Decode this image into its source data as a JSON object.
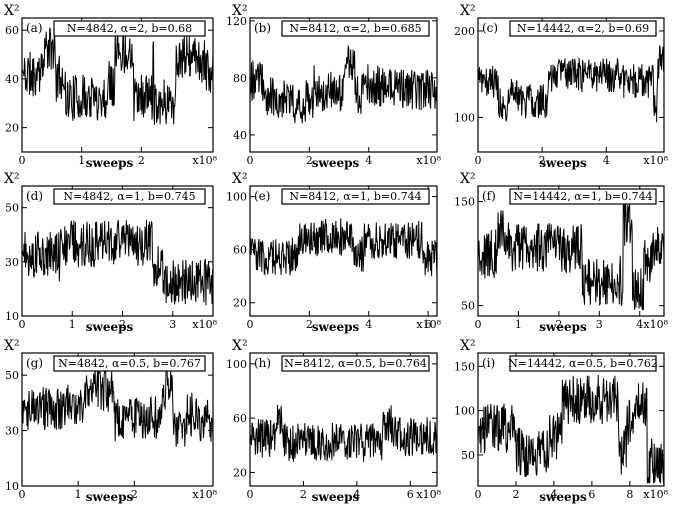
{
  "chart_data": [
    {
      "type": "line",
      "panel": "(a)",
      "annotation": "N=4842, α=2, b=0.68",
      "ylabel": "X²",
      "xlabel": "sweeps",
      "x_multiplier": "x10⁸",
      "xlim": [
        0,
        3.2
      ],
      "ylim": [
        10,
        65
      ],
      "xticks": [
        0,
        1,
        2
      ],
      "yticks": [
        20,
        40,
        60
      ],
      "y_mean": 42,
      "y_spread": 12,
      "seed": 11
    },
    {
      "type": "line",
      "panel": "(b)",
      "annotation": "N=8412, α=2, b=0.685",
      "ylabel": "X²",
      "xlabel": "sweeps",
      "x_multiplier": "x10⁸",
      "xlim": [
        0,
        6.3
      ],
      "ylim": [
        28,
        122
      ],
      "xticks": [
        0,
        2,
        4
      ],
      "yticks": [
        40,
        80,
        120
      ],
      "y_mean": 78,
      "y_spread": 18,
      "seed": 23
    },
    {
      "type": "line",
      "panel": "(c)",
      "annotation": "N=14442, α=2, b=0.69",
      "ylabel": "X²",
      "xlabel": "sweeps",
      "x_multiplier": "x10⁸",
      "xlim": [
        0,
        5.8
      ],
      "ylim": [
        60,
        215
      ],
      "xticks": [
        0,
        2,
        4
      ],
      "yticks": [
        100,
        200
      ],
      "y_mean": 140,
      "y_spread": 25,
      "seed": 37
    },
    {
      "type": "line",
      "panel": "(d)",
      "annotation": "N=4842, α=1, b=0.745",
      "ylabel": "X²",
      "xlabel": "sweeps",
      "x_multiplier": "x10⁸",
      "xlim": [
        0,
        3.8
      ],
      "ylim": [
        10,
        58
      ],
      "xticks": [
        0,
        1,
        2,
        3
      ],
      "yticks": [
        10,
        30,
        50
      ],
      "y_mean": 33,
      "y_spread": 11,
      "seed": 41
    },
    {
      "type": "line",
      "panel": "(e)",
      "annotation": "N=8412, α=1, b=0.744",
      "ylabel": "X²",
      "xlabel": "sweeps",
      "x_multiplier": "x10⁸",
      "xlim": [
        0,
        6.3
      ],
      "ylim": [
        10,
        108
      ],
      "xticks": [
        0,
        2,
        4,
        6
      ],
      "yticks": [
        20,
        60,
        100
      ],
      "y_mean": 55,
      "y_spread": 18,
      "seed": 53
    },
    {
      "type": "line",
      "panel": "(f)",
      "annotation": "N=14442, α=1, b=0.744",
      "ylabel": "X²",
      "xlabel": "sweeps",
      "x_multiplier": "x10⁸",
      "xlim": [
        0,
        4.6
      ],
      "ylim": [
        40,
        165
      ],
      "xticks": [
        0,
        1,
        2,
        3,
        4
      ],
      "yticks": [
        50,
        150
      ],
      "y_mean": 100,
      "y_spread": 30,
      "seed": 67
    },
    {
      "type": "line",
      "panel": "(g)",
      "annotation": "N=4842, α=0.5, b=0.767",
      "ylabel": "X²",
      "xlabel": "sweeps",
      "x_multiplier": "x10⁸",
      "xlim": [
        0,
        3.4
      ],
      "ylim": [
        10,
        58
      ],
      "xticks": [
        0,
        1,
        2
      ],
      "yticks": [
        10,
        30,
        50
      ],
      "y_mean": 38,
      "y_spread": 10,
      "seed": 71
    },
    {
      "type": "line",
      "panel": "(h)",
      "annotation": "N=8412, α=0.5, b=0.764",
      "ylabel": "X²",
      "xlabel": "sweeps",
      "x_multiplier": "x10⁸",
      "xlim": [
        0,
        7.0
      ],
      "ylim": [
        10,
        108
      ],
      "xticks": [
        0,
        2,
        4,
        6
      ],
      "yticks": [
        20,
        60,
        100
      ],
      "y_mean": 45,
      "y_spread": 18,
      "seed": 83
    },
    {
      "type": "line",
      "panel": "(i)",
      "annotation": "N=14442, α=0.5, b=0.762",
      "ylabel": "X²",
      "xlabel": "sweeps",
      "x_multiplier": "x10⁸",
      "xlim": [
        0,
        9.8
      ],
      "ylim": [
        15,
        165
      ],
      "xticks": [
        0,
        2,
        4,
        6,
        8
      ],
      "yticks": [
        50,
        100,
        150
      ],
      "y_mean": 80,
      "y_spread": 35,
      "seed": 97
    }
  ]
}
